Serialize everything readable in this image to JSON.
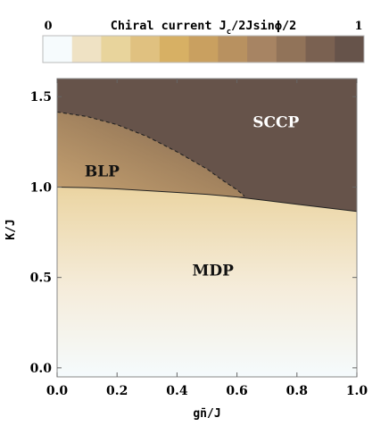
{
  "chart_data": {
    "type": "heatmap",
    "colorbar": {
      "title": "Chiral current J",
      "title_sub": "c",
      "title_rest": "/2Jsinϕ/2",
      "min_label": "0",
      "max_label": "1",
      "colors": [
        "#f6fbfd",
        "#efe2c4",
        "#e8d49c",
        "#e0c180",
        "#d7b064",
        "#c9a060",
        "#b89160",
        "#a78463",
        "#917359",
        "#7a6151",
        "#66534a"
      ]
    },
    "x": {
      "label": "gn̄/J",
      "ticks": [
        "0.0",
        "0.2",
        "0.4",
        "0.6",
        "0.8",
        "1.0"
      ],
      "tick_values": [
        0,
        0.2,
        0.4,
        0.6,
        0.8,
        1.0
      ],
      "lim": [
        0,
        1.0
      ]
    },
    "y": {
      "label": "K/J",
      "ticks": [
        "0.0",
        "0.5",
        "1.0",
        "1.5"
      ],
      "tick_values": [
        0,
        0.5,
        1.0,
        1.5
      ],
      "lim": [
        -0.05,
        1.6
      ]
    },
    "regions": [
      {
        "label": "SCCP",
        "x": 0.73,
        "y": 1.33
      },
      {
        "label": "BLP",
        "x": 0.15,
        "y": 1.06
      },
      {
        "label": "MDP",
        "x": 0.52,
        "y": 0.51
      }
    ],
    "boundaries": {
      "solid": [
        [
          0,
          1.0
        ],
        [
          0.1,
          0.997
        ],
        [
          0.2,
          0.99
        ],
        [
          0.3,
          0.98
        ],
        [
          0.4,
          0.97
        ],
        [
          0.5,
          0.96
        ],
        [
          0.6,
          0.945
        ],
        [
          0.7,
          0.925
        ],
        [
          0.8,
          0.905
        ],
        [
          0.9,
          0.885
        ],
        [
          1.0,
          0.865
        ]
      ],
      "dashed": [
        [
          0,
          1.415
        ],
        [
          0.1,
          1.39
        ],
        [
          0.2,
          1.345
        ],
        [
          0.3,
          1.28
        ],
        [
          0.4,
          1.195
        ],
        [
          0.5,
          1.1
        ],
        [
          0.55,
          1.04
        ],
        [
          0.6,
          0.985
        ],
        [
          0.625,
          0.95
        ]
      ]
    },
    "colors": {
      "sccp": "#66534a",
      "blp_dark": "#8e7258",
      "blp_light": "#c29d6f",
      "mdp_top": "#d7ad62",
      "mdp_bottom": "#f6fbfd",
      "frame": "#888888"
    }
  }
}
